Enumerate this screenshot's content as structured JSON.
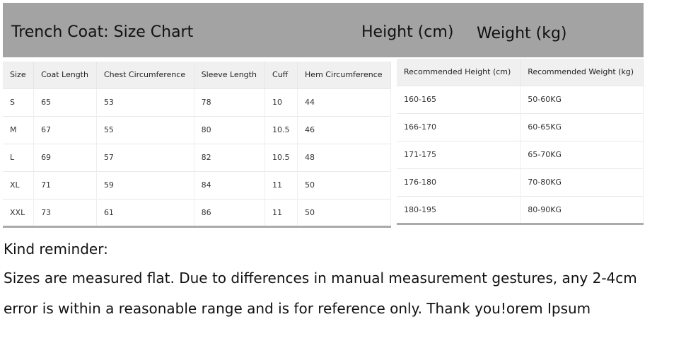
{
  "header": {
    "title": "Trench Coat: Size Chart",
    "height_label": "Height (cm)",
    "weight_label": "Weight (kg)",
    "band_color": "#a3a3a3"
  },
  "size_table": {
    "columns": [
      "Size",
      "Coat Length",
      "Chest Circumference",
      "Sleeve Length",
      "Cuff",
      "Hem Circumference"
    ],
    "rows": [
      [
        "S",
        "65",
        "53",
        "78",
        "10",
        "44"
      ],
      [
        "M",
        "67",
        "55",
        "80",
        "10.5",
        "46"
      ],
      [
        "L",
        "69",
        "57",
        "82",
        "10.5",
        "48"
      ],
      [
        "XL",
        "71",
        "59",
        "84",
        "11",
        "50"
      ],
      [
        "XXL",
        "73",
        "61",
        "86",
        "11",
        "50"
      ]
    ]
  },
  "recommend_table": {
    "columns": [
      "Recommended Height (cm)",
      "Recommended Weight (kg)"
    ],
    "rows": [
      [
        "160-165",
        "50-60KG"
      ],
      [
        "166-170",
        "60-65KG"
      ],
      [
        "171-175",
        "65-70KG"
      ],
      [
        "176-180",
        "70-80KG"
      ],
      [
        "180-195",
        "80-90KG"
      ]
    ]
  },
  "notes": [
    "Kind reminder:",
    "Sizes are measured flat. Due to differences in manual measurement gestures, any 2-4cm",
    "error is within a reasonable range and is for reference only. Thank you!orem Ipsum"
  ]
}
